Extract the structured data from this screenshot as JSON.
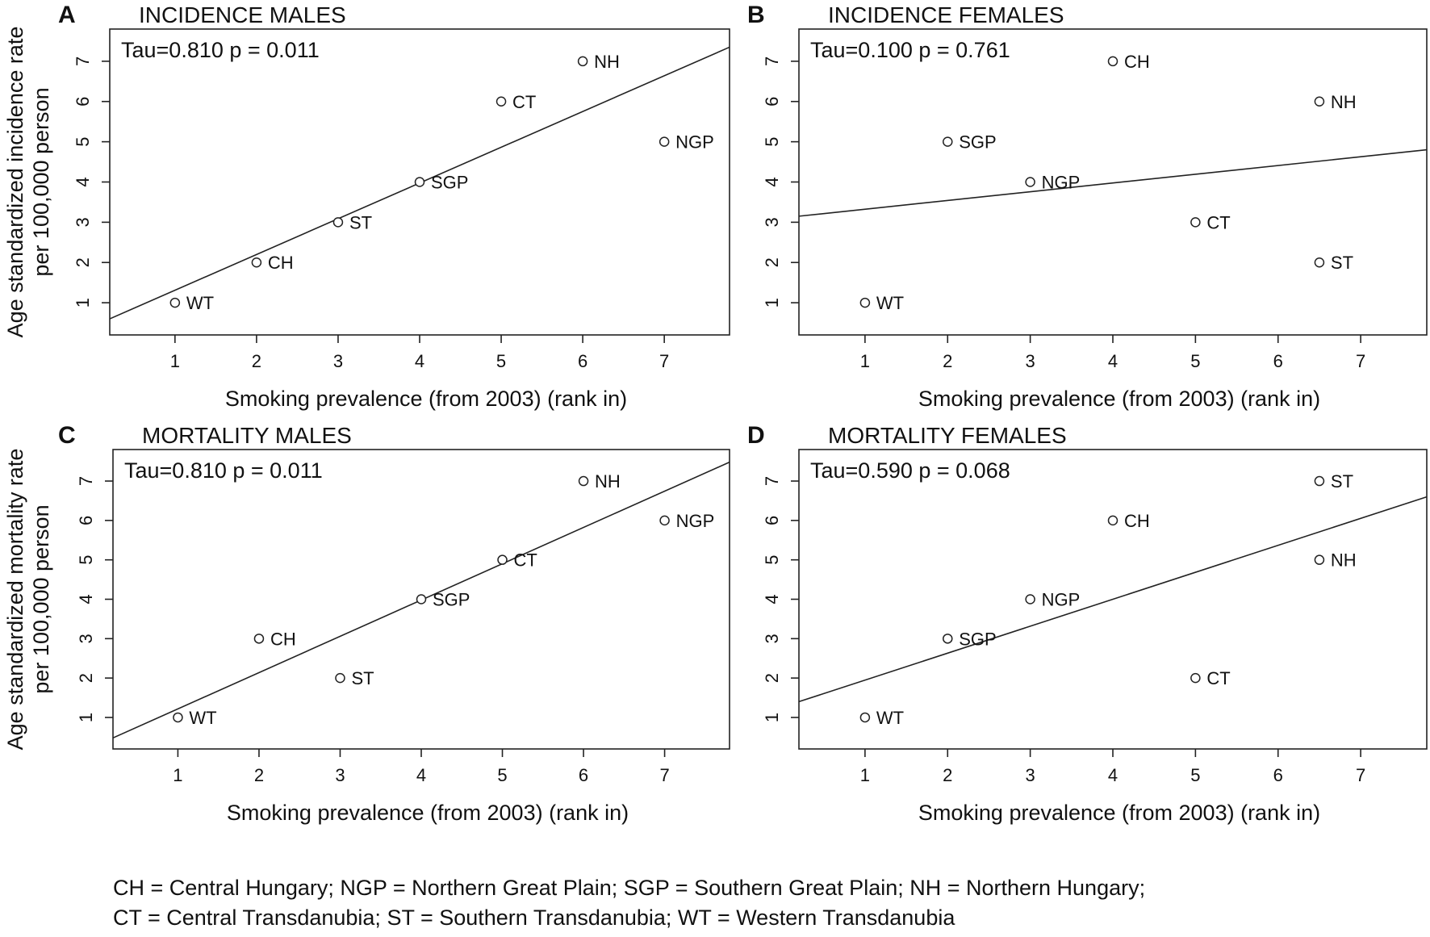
{
  "footnote": {
    "line1": "CH = Central Hungary; NGP = Northern Great Plain; SGP = Southern Great Plain; NH = Northern Hungary;",
    "line2": "CT = Central Transdanubia; ST = Southern Transdanubia; WT = Western Transdanubia"
  },
  "chart_data": [
    {
      "type": "scatter",
      "panel_letter": "A",
      "title": "INCIDENCE MALES",
      "xlabel": "Smoking prevalence (from 2003) (rank in)",
      "ylabel": [
        "Age standardized incidence rate",
        "per 100,000 person"
      ],
      "annotation": "Tau=0.810 p = 0.011",
      "xlim": [
        0.2,
        7.8
      ],
      "ylim": [
        0.2,
        7.8
      ],
      "xticks": [
        1,
        2,
        3,
        4,
        5,
        6,
        7
      ],
      "yticks": [
        1,
        2,
        3,
        4,
        5,
        6,
        7
      ],
      "points": [
        {
          "label": "WT",
          "x": 1,
          "y": 1
        },
        {
          "label": "CH",
          "x": 2,
          "y": 2
        },
        {
          "label": "ST",
          "x": 3,
          "y": 3
        },
        {
          "label": "SGP",
          "x": 4,
          "y": 4
        },
        {
          "label": "CT",
          "x": 5,
          "y": 6
        },
        {
          "label": "NH",
          "x": 6,
          "y": 7
        },
        {
          "label": "NGP",
          "x": 7,
          "y": 5
        }
      ],
      "fit_line": {
        "x": [
          0.2,
          7.8
        ],
        "y": [
          0.6,
          7.35
        ]
      }
    },
    {
      "type": "scatter",
      "panel_letter": "B",
      "title": "INCIDENCE FEMALES",
      "xlabel": "Smoking prevalence (from 2003) (rank in)",
      "ylabel": [],
      "annotation": "Tau=0.100 p = 0.761",
      "xlim": [
        0.2,
        7.8
      ],
      "ylim": [
        0.2,
        7.8
      ],
      "xticks": [
        1,
        2,
        3,
        4,
        5,
        6,
        7
      ],
      "yticks": [
        1,
        2,
        3,
        4,
        5,
        6,
        7
      ],
      "points": [
        {
          "label": "WT",
          "x": 1,
          "y": 1
        },
        {
          "label": "SGP",
          "x": 2,
          "y": 5
        },
        {
          "label": "NGP",
          "x": 3,
          "y": 4
        },
        {
          "label": "CH",
          "x": 4,
          "y": 7
        },
        {
          "label": "CT",
          "x": 5,
          "y": 3
        },
        {
          "label": "NH",
          "x": 6.5,
          "y": 6
        },
        {
          "label": "ST",
          "x": 6.5,
          "y": 2
        }
      ],
      "fit_line": {
        "x": [
          0.2,
          7.8
        ],
        "y": [
          3.15,
          4.8
        ]
      }
    },
    {
      "type": "scatter",
      "panel_letter": "C",
      "title": "MORTALITY MALES",
      "xlabel": "Smoking prevalence (from 2003) (rank in)",
      "ylabel": [
        "Age standardized mortality rate",
        "per 100,000 person"
      ],
      "annotation": "Tau=0.810 p = 0.011",
      "xlim": [
        0.2,
        7.8
      ],
      "ylim": [
        0.2,
        7.8
      ],
      "xticks": [
        1,
        2,
        3,
        4,
        5,
        6,
        7
      ],
      "yticks": [
        1,
        2,
        3,
        4,
        5,
        6,
        7
      ],
      "points": [
        {
          "label": "WT",
          "x": 1,
          "y": 1
        },
        {
          "label": "CH",
          "x": 2,
          "y": 3
        },
        {
          "label": "ST",
          "x": 3,
          "y": 2
        },
        {
          "label": "SGP",
          "x": 4,
          "y": 4
        },
        {
          "label": "CT",
          "x": 5,
          "y": 5
        },
        {
          "label": "NH",
          "x": 6,
          "y": 7
        },
        {
          "label": "NGP",
          "x": 7,
          "y": 6
        }
      ],
      "fit_line": {
        "x": [
          0.2,
          7.8
        ],
        "y": [
          0.48,
          7.48
        ]
      }
    },
    {
      "type": "scatter",
      "panel_letter": "D",
      "title": "MORTALITY FEMALES",
      "xlabel": "Smoking prevalence (from 2003) (rank in)",
      "ylabel": [],
      "annotation": "Tau=0.590 p = 0.068",
      "xlim": [
        0.2,
        7.8
      ],
      "ylim": [
        0.2,
        7.8
      ],
      "xticks": [
        1,
        2,
        3,
        4,
        5,
        6,
        7
      ],
      "yticks": [
        1,
        2,
        3,
        4,
        5,
        6,
        7
      ],
      "points": [
        {
          "label": "WT",
          "x": 1,
          "y": 1
        },
        {
          "label": "SGP",
          "x": 2,
          "y": 3
        },
        {
          "label": "NGP",
          "x": 3,
          "y": 4
        },
        {
          "label": "CH",
          "x": 4,
          "y": 6
        },
        {
          "label": "CT",
          "x": 5,
          "y": 2
        },
        {
          "label": "ST",
          "x": 6.5,
          "y": 7
        },
        {
          "label": "NH",
          "x": 6.5,
          "y": 5
        }
      ],
      "fit_line": {
        "x": [
          0.2,
          7.8
        ],
        "y": [
          1.4,
          6.6
        ]
      }
    }
  ]
}
